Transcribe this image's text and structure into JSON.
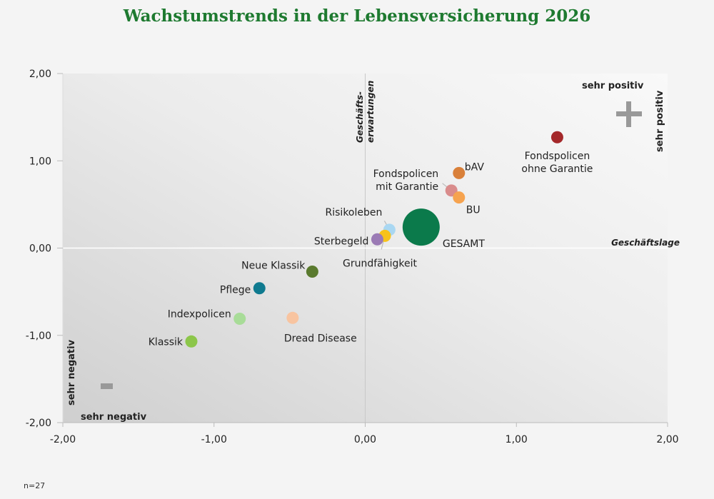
{
  "chart_data": {
    "type": "scatter",
    "title": "Wachstumstrends in der Lebensversicherung 2026",
    "xlabel": "Geschäftslage",
    "ylabel": "Geschäfts-erwartungen",
    "ylabel_lines": [
      "Geschäfts-",
      "erwartungen"
    ],
    "xlim": [
      -2,
      2
    ],
    "ylim": [
      -2,
      2
    ],
    "xticks": [
      -2,
      -1,
      0,
      1,
      2
    ],
    "yticks": [
      -2,
      -1,
      0,
      1,
      2
    ],
    "xtick_labels": [
      "-2,00",
      "-1,00",
      "0,00",
      "1,00",
      "2,00"
    ],
    "ytick_labels": [
      "-2,00",
      "-1,00",
      "0,00",
      "1,00",
      "2,00"
    ],
    "corner_labels": {
      "top_right_horizontal": "sehr positiv",
      "top_right_vertical": "sehr positiv",
      "bottom_left_horizontal": "sehr negativ",
      "bottom_left_vertical": "sehr negativ"
    },
    "note": "n=27",
    "points": [
      {
        "name": "Fondspolicen ohne Garantie",
        "lines": [
          "Fondspolicen",
          "ohne Garantie"
        ],
        "x": 1.27,
        "y": 1.27,
        "color": "#a4282a",
        "size": "normal"
      },
      {
        "name": "bAV",
        "lines": [
          "bAV"
        ],
        "x": 0.62,
        "y": 0.86,
        "color": "#d9803a",
        "size": "normal"
      },
      {
        "name": "Fondspolicen mit Garantie",
        "lines": [
          "Fondspolicen",
          "mit Garantie"
        ],
        "x": 0.57,
        "y": 0.66,
        "color": "#d98c8c",
        "size": "normal"
      },
      {
        "name": "BU",
        "lines": [
          "BU"
        ],
        "x": 0.62,
        "y": 0.58,
        "color": "#f6a34f",
        "size": "normal"
      },
      {
        "name": "Risikoleben",
        "lines": [
          "Risikoleben"
        ],
        "x": 0.16,
        "y": 0.21,
        "color": "#a9d7f2",
        "size": "normal"
      },
      {
        "name": "Grundfähigkeit",
        "lines": [
          "Grundfähigkeit"
        ],
        "x": 0.13,
        "y": 0.14,
        "color": "#f7c21a",
        "size": "normal"
      },
      {
        "name": "Sterbegeld",
        "lines": [
          "Sterbegeld"
        ],
        "x": 0.08,
        "y": 0.1,
        "color": "#9b7bb5",
        "size": "normal"
      },
      {
        "name": "GESAMT",
        "lines": [
          "GESAMT"
        ],
        "x": 0.37,
        "y": 0.24,
        "color": "#0b7a4b",
        "size": "large"
      },
      {
        "name": "Neue Klassik",
        "lines": [
          "Neue Klassik"
        ],
        "x": -0.35,
        "y": -0.27,
        "color": "#5a7a2e",
        "size": "normal"
      },
      {
        "name": "Pflege",
        "lines": [
          "Pflege"
        ],
        "x": -0.7,
        "y": -0.46,
        "color": "#0f7a8f",
        "size": "normal"
      },
      {
        "name": "Indexpolicen",
        "lines": [
          "Indexpolicen"
        ],
        "x": -0.83,
        "y": -0.81,
        "color": "#a8dc98",
        "size": "normal"
      },
      {
        "name": "Dread Disease",
        "lines": [
          "Dread Disease"
        ],
        "x": -0.48,
        "y": -0.8,
        "color": "#f8c4a0",
        "size": "normal"
      },
      {
        "name": "Klassik",
        "lines": [
          "Klassik"
        ],
        "x": -1.15,
        "y": -1.07,
        "color": "#8cc64a",
        "size": "normal"
      }
    ],
    "colors": {
      "title": "#1e7a30",
      "plot_dark": "#d0d0d0",
      "plot_light": "#f8f8f8",
      "marker": "#999999"
    }
  }
}
